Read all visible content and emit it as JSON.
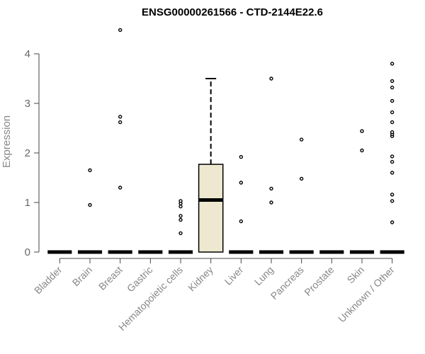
{
  "chart_data": {
    "type": "boxplot",
    "title": "ENSG00000261566 - CTD-2144E22.6",
    "ylabel": "Expression",
    "xlabel": "",
    "ylim": [
      0,
      4
    ],
    "yticks": [
      0,
      1,
      2,
      3,
      4
    ],
    "grid": false,
    "box_fill": "#ede8cf",
    "categories": [
      "Bladder",
      "Brain",
      "Breast",
      "Gastric",
      "Hematopoietic cells",
      "Kidney",
      "Liver",
      "Lung",
      "Pancreas",
      "Prostate",
      "Skin",
      "Unknown / Other"
    ],
    "boxes": [
      {
        "q1": 0,
        "median": 0,
        "q3": 0,
        "whisker_low": 0,
        "whisker_high": 0,
        "outliers": []
      },
      {
        "q1": 0,
        "median": 0,
        "q3": 0,
        "whisker_low": 0,
        "whisker_high": 0,
        "outliers": [
          0.95,
          1.65
        ]
      },
      {
        "q1": 0,
        "median": 0,
        "q3": 0,
        "whisker_low": 0,
        "whisker_high": 0,
        "outliers": [
          1.3,
          2.62,
          2.73,
          4.48
        ]
      },
      {
        "q1": 0,
        "median": 0,
        "q3": 0,
        "whisker_low": 0,
        "whisker_high": 0,
        "outliers": []
      },
      {
        "q1": 0,
        "median": 0,
        "q3": 0,
        "whisker_low": 0,
        "whisker_high": 0,
        "outliers": [
          0.38,
          0.65,
          0.73,
          0.92,
          0.98,
          1.03
        ]
      },
      {
        "q1": 0,
        "median": 1.05,
        "q3": 1.77,
        "whisker_low": 0,
        "whisker_high": 3.5,
        "outliers": []
      },
      {
        "q1": 0,
        "median": 0,
        "q3": 0,
        "whisker_low": 0,
        "whisker_high": 0,
        "outliers": [
          0.62,
          1.4,
          1.92
        ]
      },
      {
        "q1": 0,
        "median": 0,
        "q3": 0,
        "whisker_low": 0,
        "whisker_high": 0,
        "outliers": [
          1.0,
          1.28,
          3.5
        ]
      },
      {
        "q1": 0,
        "median": 0,
        "q3": 0,
        "whisker_low": 0,
        "whisker_high": 0,
        "outliers": [
          1.48,
          2.27
        ]
      },
      {
        "q1": 0,
        "median": 0,
        "q3": 0,
        "whisker_low": 0,
        "whisker_high": 0,
        "outliers": []
      },
      {
        "q1": 0,
        "median": 0,
        "q3": 0,
        "whisker_low": 0,
        "whisker_high": 0,
        "outliers": [
          2.05,
          2.44
        ]
      },
      {
        "q1": 0,
        "median": 0,
        "q3": 0,
        "whisker_low": 0,
        "whisker_high": 0,
        "outliers": [
          0.6,
          1.03,
          1.16,
          1.6,
          1.82,
          1.93,
          2.34,
          2.38,
          2.42,
          2.62,
          2.82,
          3.05,
          3.32,
          3.45,
          3.8
        ]
      }
    ]
  }
}
